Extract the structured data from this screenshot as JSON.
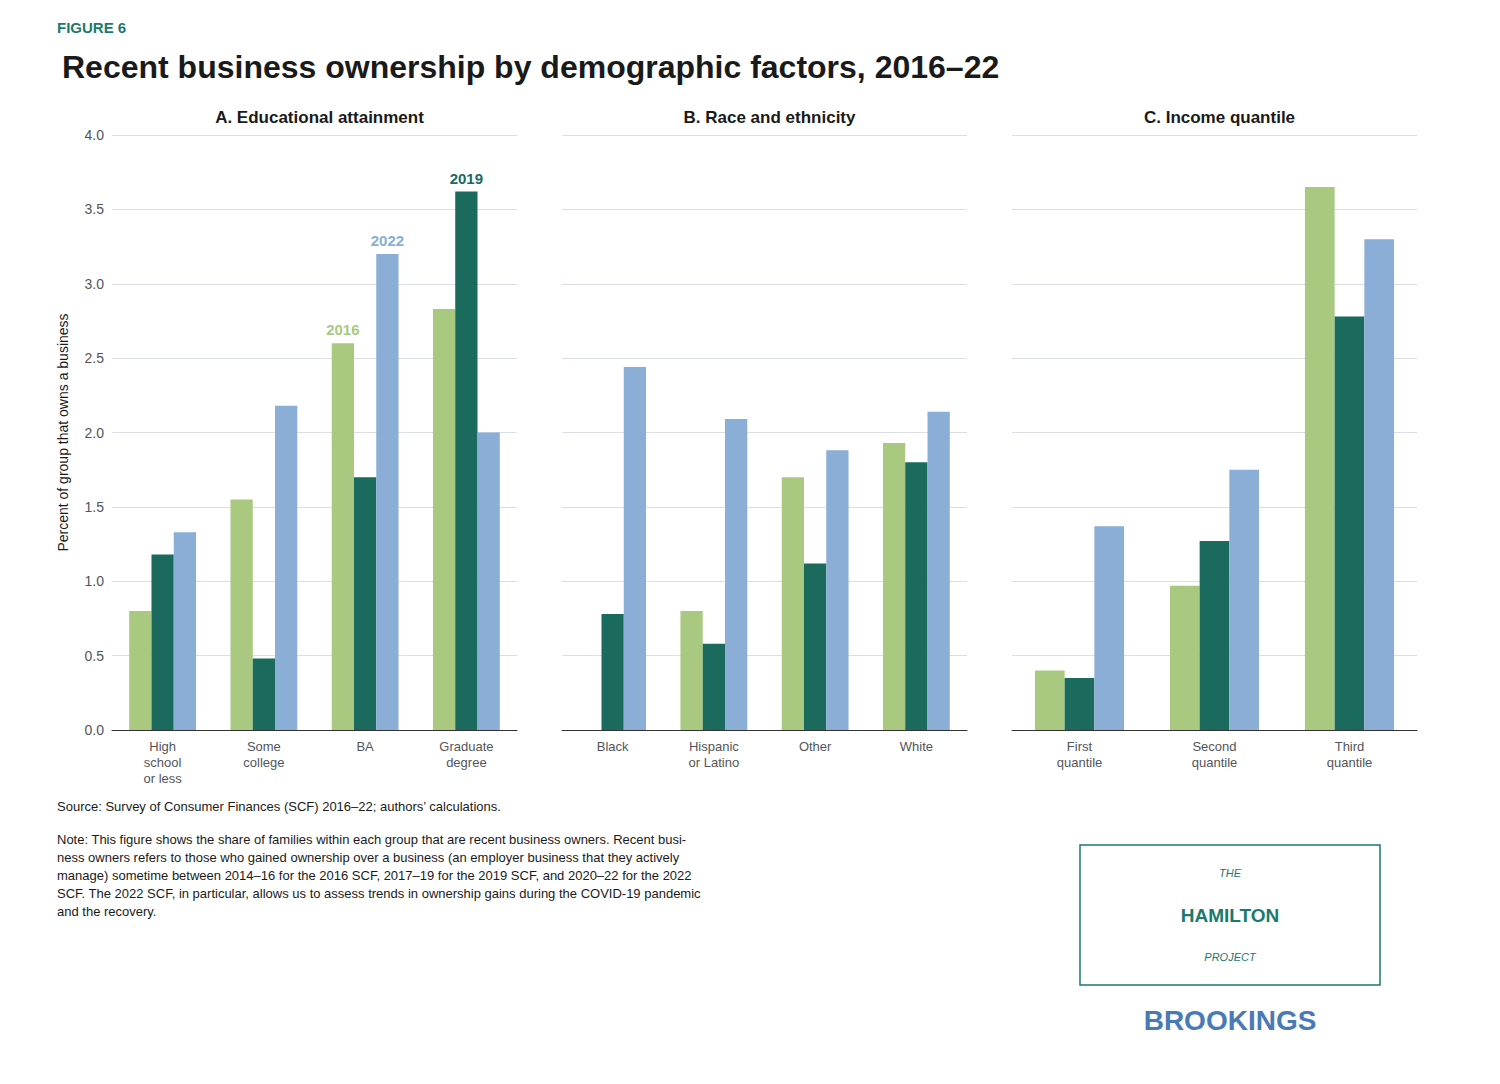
{
  "title": "Recent business ownership by demographic factors, 2016–22",
  "annotations": [
    "FIGURE 6",
    "Source: Survey of Consumer Finances (SCF) 2016–22; authors’ calculations.",
    "Note: This figure shows the share of families within each group that are recent business owners. Recent busi-\nness owners refers to those who gained ownership over a business (an employer business that they actively\nmanage) sometime between 2014–16 for the 2016 SCF, 2017–19 for the 2019 SCF, and 2020–22 for the 2022\nSCF. The 2022 SCF, in particular, allows us to assess trends in ownership gains during the COVID-19 pandemic\nand the recovery.",
    "THE",
    "HAMILTON",
    "PROJECT",
    "BROOKINGS"
  ],
  "chart_data": [
    {
      "type": "bar",
      "title": "A. Educational attainment",
      "ylabel": "Percent of group that owns a business",
      "categories": [
        "High\nschool\nor less",
        "Some\ncollege",
        "BA",
        "Graduate\ndegree"
      ],
      "series": [
        {
          "name": "2016",
          "color": "#a8c97f",
          "values": [
            0.8,
            1.55,
            2.6,
            2.83
          ]
        },
        {
          "name": "2019",
          "color": "#1a6b5e",
          "values": [
            1.18,
            0.48,
            1.7,
            3.62
          ]
        },
        {
          "name": "2022",
          "color": "#8aaed6",
          "values": [
            1.33,
            2.18,
            3.2,
            2.0
          ]
        }
      ],
      "annotations": [
        {
          "text": "2016",
          "series": "2016",
          "category": "BA"
        },
        {
          "text": "2019",
          "series": "2019",
          "category": "Graduate\ndegree"
        },
        {
          "text": "2022",
          "series": "2022",
          "category": "BA"
        }
      ],
      "ylim": [
        0,
        4.0
      ],
      "yticks": [
        {
          "value": 0.0,
          "label": "0.0"
        },
        0.5,
        {
          "value": 1.0,
          "label": "1.0"
        },
        1.5,
        {
          "value": 2.0,
          "label": "2.0"
        },
        2.5,
        {
          "value": 3.0,
          "label": "3.0"
        },
        3.5,
        {
          "value": 4.0,
          "label": "4.0"
        }
      ],
      "grid": true
    },
    {
      "type": "bar",
      "title": "B. Race and ethnicity",
      "categories": [
        "Black",
        "Hispanic\nor Latino",
        "Other",
        "White"
      ],
      "series": [
        {
          "name": "2016",
          "color": "#a8c97f",
          "values": [
            0.0,
            0.8,
            1.7,
            1.93
          ]
        },
        {
          "name": "2019",
          "color": "#1a6b5e",
          "values": [
            0.78,
            0.58,
            1.12,
            1.8
          ]
        },
        {
          "name": "2022",
          "color": "#8aaed6",
          "values": [
            2.44,
            2.09,
            1.88,
            2.14
          ]
        }
      ],
      "ylim": [
        0,
        4.0
      ],
      "yticks": [
        {
          "value": 0.0,
          "label": "0.0"
        },
        0.5,
        {
          "value": 1.0,
          "label": "1.0"
        },
        1.5,
        {
          "value": 2.0,
          "label": "2.0"
        },
        2.5,
        {
          "value": 3.0,
          "label": "3.0"
        },
        3.5,
        {
          "value": 4.0,
          "label": "4.0"
        }
      ],
      "grid": true,
      "tick_labels": "x"
    },
    {
      "type": "bar",
      "title": "C. Income quantile",
      "categories": [
        "First\nquantile",
        "Second\nquantile",
        "Third\nquantile"
      ],
      "series": [
        {
          "name": "2016",
          "color": "#a8c97f",
          "values": [
            0.4,
            0.97,
            3.65
          ]
        },
        {
          "name": "2019",
          "color": "#1a6b5e",
          "values": [
            0.35,
            1.27,
            2.78
          ]
        },
        {
          "name": "2022",
          "color": "#8aaed6",
          "values": [
            1.37,
            1.75,
            3.3
          ]
        }
      ],
      "ylim": [
        0,
        4.0
      ],
      "yticks": [
        {
          "value": 0.0,
          "label": "0.0"
        },
        0.5,
        {
          "value": 1.0,
          "label": "1.0"
        },
        1.5,
        {
          "value": 2.0,
          "label": "2.0"
        },
        2.5,
        {
          "value": 3.0,
          "label": "3.0"
        },
        3.5,
        {
          "value": 4.0,
          "label": "4.0"
        }
      ],
      "grid": true,
      "tick_labels": "x"
    }
  ]
}
